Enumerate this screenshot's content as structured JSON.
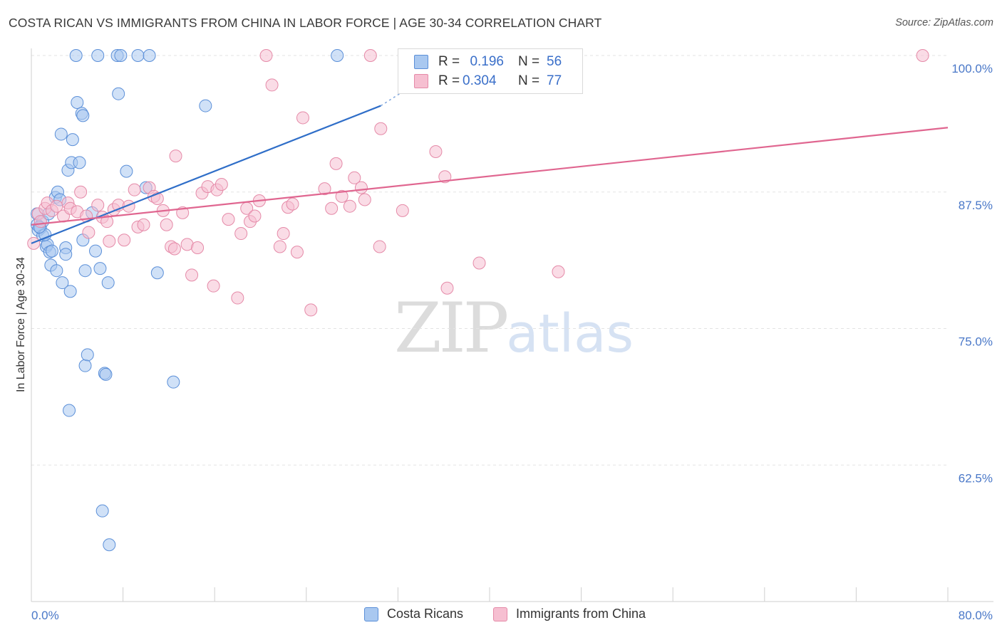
{
  "title": "COSTA RICAN VS IMMIGRANTS FROM CHINA IN LABOR FORCE | AGE 30-34 CORRELATION CHART",
  "source": "Source: ZipAtlas.com",
  "watermark": {
    "zip": "ZIP",
    "atlas": "atlas"
  },
  "legend": {
    "r_label": "R =",
    "n_label": "N =",
    "rows": [
      {
        "r": "0.196",
        "n": "56",
        "color": "#a9c8f0",
        "stroke": "#5b8fd8"
      },
      {
        "r": "0.304",
        "n": "77",
        "color": "#f6bfd1",
        "stroke": "#e58aa8"
      }
    ]
  },
  "bottom_legend": [
    "Costa Ricans",
    "Immigrants from China"
  ],
  "chart_data": {
    "type": "scatter",
    "title": "COSTA RICAN VS IMMIGRANTS FROM CHINA IN LABOR FORCE | AGE 30-34 CORRELATION CHART",
    "xlabel": "",
    "ylabel": "In Labor Force | Age 30-34",
    "xlim": [
      0,
      80
    ],
    "ylim": [
      50,
      100
    ],
    "x_tick_labels": [
      "0.0%",
      "80.0%"
    ],
    "y_ticks": [
      62.5,
      75.0,
      87.5,
      100.0
    ],
    "y_tick_labels": [
      "62.5%",
      "75.0%",
      "87.5%",
      "100.0%"
    ],
    "grid": true,
    "series": [
      {
        "name": "Costa Ricans",
        "color": "#a9c8f0",
        "stroke": "#5b8fd8",
        "trend": {
          "x": [
            0,
            30.5
          ],
          "y": [
            82.8,
            95.4
          ],
          "color": "#2f6ec8",
          "dash_to": [
            33.5,
            97.4
          ]
        },
        "points": [
          [
            0.5,
            85.5
          ],
          [
            0.5,
            84.5
          ],
          [
            0.6,
            84.0
          ],
          [
            0.8,
            84.2
          ],
          [
            1.0,
            84.8
          ],
          [
            1.0,
            83.5
          ],
          [
            1.3,
            82.5
          ],
          [
            1.4,
            82.7
          ],
          [
            1.5,
            85.5
          ],
          [
            1.6,
            82.0
          ],
          [
            1.7,
            80.8
          ],
          [
            1.8,
            82.1
          ],
          [
            2.1,
            87.0
          ],
          [
            2.2,
            80.3
          ],
          [
            2.3,
            87.5
          ],
          [
            2.5,
            86.8
          ],
          [
            2.6,
            92.8
          ],
          [
            2.7,
            79.2
          ],
          [
            3.0,
            82.4
          ],
          [
            3.0,
            81.8
          ],
          [
            3.2,
            89.5
          ],
          [
            3.3,
            67.5
          ],
          [
            3.4,
            78.4
          ],
          [
            3.5,
            90.2
          ],
          [
            3.6,
            92.3
          ],
          [
            3.9,
            100.0
          ],
          [
            4.0,
            95.7
          ],
          [
            4.2,
            90.2
          ],
          [
            4.4,
            94.7
          ],
          [
            4.5,
            94.5
          ],
          [
            4.5,
            83.1
          ],
          [
            4.7,
            71.6
          ],
          [
            4.7,
            80.3
          ],
          [
            4.9,
            72.6
          ],
          [
            5.3,
            85.6
          ],
          [
            5.6,
            82.1
          ],
          [
            5.8,
            100.0
          ],
          [
            6.0,
            80.5
          ],
          [
            6.2,
            58.3
          ],
          [
            6.4,
            70.9
          ],
          [
            6.5,
            70.8
          ],
          [
            6.7,
            79.2
          ],
          [
            6.8,
            55.2
          ],
          [
            7.5,
            100.0
          ],
          [
            7.6,
            96.5
          ],
          [
            7.8,
            100.0
          ],
          [
            8.3,
            89.4
          ],
          [
            9.3,
            100.0
          ],
          [
            10.0,
            87.9
          ],
          [
            10.3,
            100.0
          ],
          [
            11.0,
            80.1
          ],
          [
            12.4,
            70.1
          ],
          [
            15.2,
            95.4
          ],
          [
            26.7,
            100.0
          ],
          [
            1.2,
            83.6
          ],
          [
            0.7,
            84.3
          ]
        ]
      },
      {
        "name": "Immigrants from China",
        "color": "#f6bfd1",
        "stroke": "#e58aa8",
        "trend": {
          "x": [
            0,
            80
          ],
          "y": [
            84.5,
            93.4
          ],
          "color": "#e06690"
        },
        "points": [
          [
            0.2,
            82.8
          ],
          [
            0.6,
            85.5
          ],
          [
            0.8,
            84.8
          ],
          [
            1.2,
            86.0
          ],
          [
            1.4,
            86.5
          ],
          [
            1.8,
            85.8
          ],
          [
            2.2,
            86.2
          ],
          [
            2.8,
            85.3
          ],
          [
            3.2,
            86.5
          ],
          [
            3.4,
            86.0
          ],
          [
            4.0,
            85.7
          ],
          [
            4.3,
            87.5
          ],
          [
            4.8,
            85.3
          ],
          [
            5.0,
            83.8
          ],
          [
            5.8,
            86.3
          ],
          [
            6.2,
            85.2
          ],
          [
            6.6,
            84.8
          ],
          [
            6.8,
            83.0
          ],
          [
            7.2,
            85.9
          ],
          [
            7.6,
            86.3
          ],
          [
            8.1,
            83.1
          ],
          [
            8.5,
            86.2
          ],
          [
            9.0,
            87.7
          ],
          [
            9.3,
            84.3
          ],
          [
            9.8,
            84.5
          ],
          [
            10.3,
            87.9
          ],
          [
            10.7,
            87.1
          ],
          [
            11.0,
            86.9
          ],
          [
            11.5,
            85.8
          ],
          [
            11.8,
            84.5
          ],
          [
            12.2,
            82.5
          ],
          [
            12.5,
            82.3
          ],
          [
            12.6,
            90.8
          ],
          [
            13.2,
            85.6
          ],
          [
            13.6,
            82.7
          ],
          [
            14.0,
            79.9
          ],
          [
            14.5,
            82.4
          ],
          [
            14.9,
            87.4
          ],
          [
            15.4,
            88.0
          ],
          [
            15.9,
            78.9
          ],
          [
            16.2,
            87.7
          ],
          [
            16.6,
            88.2
          ],
          [
            17.2,
            85.0
          ],
          [
            18.0,
            77.8
          ],
          [
            18.3,
            83.7
          ],
          [
            18.8,
            86.0
          ],
          [
            19.1,
            84.8
          ],
          [
            19.5,
            85.3
          ],
          [
            19.9,
            86.7
          ],
          [
            20.5,
            100.0
          ],
          [
            21.0,
            97.3
          ],
          [
            21.7,
            82.5
          ],
          [
            22.0,
            83.7
          ],
          [
            22.4,
            86.1
          ],
          [
            22.8,
            86.4
          ],
          [
            23.2,
            82.0
          ],
          [
            23.7,
            94.3
          ],
          [
            24.4,
            76.7
          ],
          [
            25.6,
            87.8
          ],
          [
            26.2,
            86.0
          ],
          [
            26.6,
            90.1
          ],
          [
            27.1,
            87.1
          ],
          [
            27.8,
            86.2
          ],
          [
            28.2,
            88.8
          ],
          [
            28.8,
            87.9
          ],
          [
            29.1,
            86.8
          ],
          [
            29.6,
            100.0
          ],
          [
            30.4,
            82.5
          ],
          [
            30.5,
            93.3
          ],
          [
            32.4,
            85.8
          ],
          [
            33.4,
            100.0
          ],
          [
            35.3,
            91.2
          ],
          [
            36.1,
            88.9
          ],
          [
            36.3,
            78.7
          ],
          [
            39.1,
            81.0
          ],
          [
            46.0,
            80.2
          ],
          [
            77.8,
            100.0
          ]
        ]
      }
    ]
  }
}
